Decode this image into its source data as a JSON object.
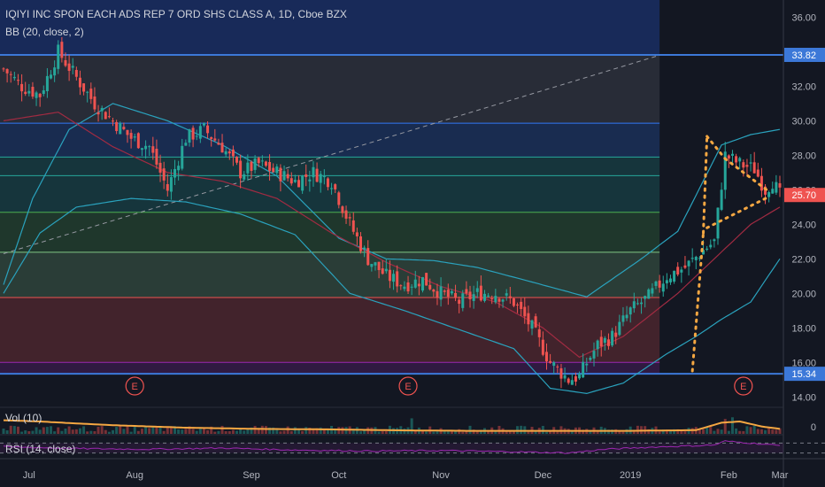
{
  "header": {
    "title": "IQIYI INC SPON EACH ADS REP 7 ORD SHS CLASS A, 1D, Cboe BZX",
    "indicator": "BB (20, close, 2)"
  },
  "panes": {
    "volume_label": "Vol (10)",
    "volume_zero": "0",
    "rsi_label": "RSI (14, close)"
  },
  "colors": {
    "background": "#131722",
    "up": "#26a69a",
    "down": "#ef5350",
    "bb_band": "#2aa2bd",
    "bb_basis": "#a12b42",
    "pattern": "#f5a742",
    "level_line": "#3c78d8",
    "rsi": "#9c27b0"
  },
  "chart_data": {
    "type": "candlestick",
    "title": "IQIYI INC SPON EACH ADS REP 7 ORD SHS CLASS A, 1D, Cboe BZX",
    "ylim": [
      13.5,
      37
    ],
    "y_ticks": [
      14,
      16,
      18,
      20,
      22,
      24,
      26,
      28,
      30,
      32,
      34,
      36
    ],
    "x_labels": [
      "Jul",
      "Aug",
      "Sep",
      "Oct",
      "Nov",
      "Dec",
      "2019",
      "Feb",
      "Mar"
    ],
    "price_tags": [
      {
        "value": 33.82,
        "label": "33.82",
        "color": "#3c78d8"
      },
      {
        "value": 25.7,
        "label": "25.70",
        "color": "#ef5350"
      },
      {
        "value": 15.34,
        "label": "15.34",
        "color": "#3c78d8"
      }
    ],
    "horizontal_levels": [
      33.82,
      15.34
    ],
    "fib_levels": [
      33.82,
      29.86,
      27.9,
      26.82,
      24.7,
      22.38,
      19.76,
      16.0,
      15.34
    ],
    "fib_zones": [
      {
        "from": 33.82,
        "to": 29.86,
        "color": "#787b86"
      },
      {
        "from": 29.86,
        "to": 27.9,
        "color": "#3179f5"
      },
      {
        "from": 27.9,
        "to": 26.82,
        "color": "#26a69a"
      },
      {
        "from": 26.82,
        "to": 24.7,
        "color": "#26a69a"
      },
      {
        "from": 24.7,
        "to": 22.38,
        "color": "#4caf50"
      },
      {
        "from": 22.38,
        "to": 19.76,
        "color": "#81c784"
      },
      {
        "from": 19.76,
        "to": 16.0,
        "color": "#ef5350"
      },
      {
        "from": 16.0,
        "to": 15.34,
        "color": "#9c27b0"
      }
    ],
    "earnings_markers": [
      "Aug",
      "Nov",
      "Feb"
    ],
    "earnings_label": "E",
    "bb_upper_anchors": [
      [
        0,
        20.5
      ],
      [
        8,
        25.5
      ],
      [
        18,
        29.5
      ],
      [
        30,
        31.0
      ],
      [
        45,
        30.0
      ],
      [
        60,
        28.6
      ],
      [
        75,
        26.8
      ],
      [
        92,
        23.2
      ],
      [
        105,
        22.0
      ],
      [
        118,
        21.9
      ],
      [
        130,
        21.5
      ],
      [
        146,
        20.6
      ],
      [
        160,
        19.8
      ],
      [
        175,
        22.0
      ],
      [
        185,
        23.6
      ],
      [
        197,
        28.6
      ],
      [
        205,
        29.2
      ],
      [
        213,
        29.5
      ]
    ],
    "bb_lower_anchors": [
      [
        0,
        20.0
      ],
      [
        10,
        23.5
      ],
      [
        20,
        25.0
      ],
      [
        35,
        25.5
      ],
      [
        50,
        25.3
      ],
      [
        65,
        24.6
      ],
      [
        80,
        23.4
      ],
      [
        95,
        20.0
      ],
      [
        110,
        19.0
      ],
      [
        125,
        17.9
      ],
      [
        140,
        16.8
      ],
      [
        150,
        14.5
      ],
      [
        160,
        14.2
      ],
      [
        170,
        14.8
      ],
      [
        182,
        16.5
      ],
      [
        190,
        17.5
      ],
      [
        197,
        18.5
      ],
      [
        205,
        19.5
      ],
      [
        213,
        22.0
      ]
    ],
    "bb_basis_anchors": [
      [
        0,
        30.0
      ],
      [
        15,
        30.5
      ],
      [
        30,
        28.5
      ],
      [
        45,
        27.0
      ],
      [
        60,
        26.5
      ],
      [
        75,
        25.5
      ],
      [
        90,
        23.5
      ],
      [
        105,
        21.8
      ],
      [
        120,
        20.4
      ],
      [
        135,
        19.5
      ],
      [
        148,
        18.0
      ],
      [
        158,
        16.3
      ],
      [
        170,
        17.5
      ],
      [
        185,
        20.0
      ],
      [
        195,
        22.0
      ],
      [
        205,
        24.0
      ],
      [
        213,
        25.0
      ]
    ],
    "close_anchors": [
      [
        0,
        33.0
      ],
      [
        5,
        32.0
      ],
      [
        10,
        31.5
      ],
      [
        15,
        34.0
      ],
      [
        20,
        32.5
      ],
      [
        25,
        31.0
      ],
      [
        30,
        30.0
      ],
      [
        35,
        29.0
      ],
      [
        40,
        28.5
      ],
      [
        45,
        26.0
      ],
      [
        50,
        29.0
      ],
      [
        55,
        29.5
      ],
      [
        60,
        28.5
      ],
      [
        65,
        27.0
      ],
      [
        70,
        27.5
      ],
      [
        75,
        27.0
      ],
      [
        80,
        26.5
      ],
      [
        85,
        27.0
      ],
      [
        90,
        26.5
      ],
      [
        95,
        24.0
      ],
      [
        100,
        22.0
      ],
      [
        105,
        21.0
      ],
      [
        110,
        20.5
      ],
      [
        115,
        20.8
      ],
      [
        120,
        20.0
      ],
      [
        125,
        19.5
      ],
      [
        130,
        20.0
      ],
      [
        135,
        20.0
      ],
      [
        140,
        19.5
      ],
      [
        145,
        18.0
      ],
      [
        150,
        16.0
      ],
      [
        155,
        15.0
      ],
      [
        158,
        15.2
      ],
      [
        160,
        16.0
      ],
      [
        163,
        17.0
      ],
      [
        167,
        17.5
      ],
      [
        172,
        19.0
      ],
      [
        177,
        19.8
      ],
      [
        182,
        21.0
      ],
      [
        187,
        21.5
      ],
      [
        192,
        22.5
      ],
      [
        195,
        23.0
      ],
      [
        198,
        28.0
      ],
      [
        202,
        27.5
      ],
      [
        206,
        27.2
      ],
      [
        209,
        26.0
      ],
      [
        211,
        26.5
      ],
      [
        213,
        25.7
      ]
    ],
    "trendline": {
      "from": [
        0,
        22.3
      ],
      "to": [
        180,
        33.8
      ]
    },
    "pattern_segments": [
      [
        [
          189,
          15.5
        ],
        [
          192,
          23.5
        ]
      ],
      [
        [
          192,
          23.5
        ],
        [
          193,
          29.1
        ]
      ],
      [
        [
          193,
          29.1
        ],
        [
          198,
          27.8
        ]
      ],
      [
        [
          198,
          27.8
        ],
        [
          210,
          25.9
        ]
      ],
      [
        [
          193,
          23.8
        ],
        [
          210,
          25.6
        ]
      ]
    ],
    "n_bars": 214,
    "volume_ylim": [
      0,
      1
    ],
    "volume_smooth_anchors": [
      [
        0,
        0.55
      ],
      [
        10,
        0.5
      ],
      [
        20,
        0.42
      ],
      [
        30,
        0.35
      ],
      [
        50,
        0.25
      ],
      [
        70,
        0.2
      ],
      [
        90,
        0.18
      ],
      [
        110,
        0.14
      ],
      [
        130,
        0.12
      ],
      [
        150,
        0.12
      ],
      [
        170,
        0.12
      ],
      [
        190,
        0.15
      ],
      [
        197,
        0.45
      ],
      [
        202,
        0.5
      ],
      [
        208,
        0.3
      ],
      [
        213,
        0.2
      ]
    ],
    "rsi_ylim": [
      0,
      100
    ],
    "rsi_bands": [
      30,
      70
    ],
    "rsi_anchors": [
      [
        0,
        55
      ],
      [
        20,
        48
      ],
      [
        40,
        45
      ],
      [
        60,
        50
      ],
      [
        80,
        42
      ],
      [
        100,
        38
      ],
      [
        120,
        40
      ],
      [
        140,
        35
      ],
      [
        155,
        30
      ],
      [
        165,
        45
      ],
      [
        180,
        55
      ],
      [
        195,
        62
      ],
      [
        198,
        78
      ],
      [
        205,
        70
      ],
      [
        213,
        60
      ]
    ]
  }
}
